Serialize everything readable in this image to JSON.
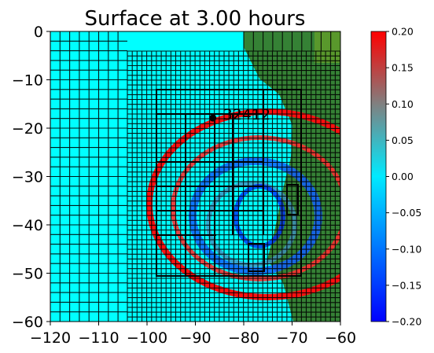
{
  "chart_data": {
    "type": "heatmap",
    "title": "Surface at 3.00 hours",
    "xlabel": "",
    "ylabel": "",
    "xlim": [
      -120,
      -60
    ],
    "ylim": [
      -60,
      0
    ],
    "x_ticks": [
      -120,
      -110,
      -100,
      -90,
      -80,
      -70,
      -60
    ],
    "y_ticks": [
      0,
      -10,
      -20,
      -30,
      -40,
      -50,
      -60
    ],
    "x_tick_labels": [
      "−120",
      "−110",
      "−100",
      "−90",
      "−80",
      "−70",
      "−60"
    ],
    "y_tick_labels": [
      "0",
      "−10",
      "−20",
      "−30",
      "−40",
      "−50",
      "−60"
    ],
    "grid": false,
    "colorbar": {
      "min": -0.2,
      "max": 0.2,
      "ticks": [
        0.2,
        0.15,
        0.1,
        0.05,
        0.0,
        -0.05,
        -0.1,
        -0.15,
        -0.2
      ],
      "tick_labels": [
        "0.20",
        "0.15",
        "0.10",
        "0.05",
        "0.00",
        "−0.05",
        "−0.10",
        "−0.15",
        "−0.20"
      ],
      "colors": [
        "#0000ff",
        "#00eaff",
        "#ff0000"
      ]
    },
    "gauge": {
      "label": "32412",
      "x": -86.4,
      "y": -17.9
    },
    "colors": {
      "ocean": "#00ffff",
      "land": "#358135",
      "grid_lines": "#000000"
    }
  }
}
